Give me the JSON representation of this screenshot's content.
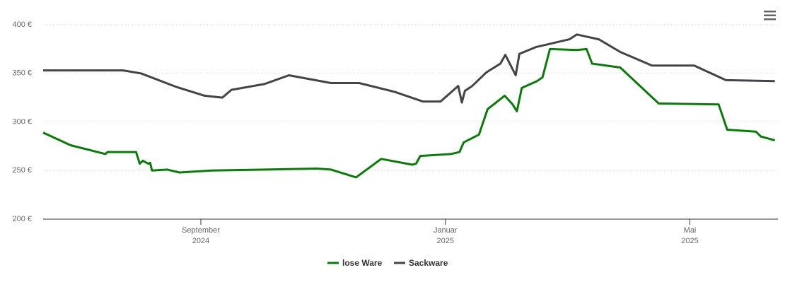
{
  "chart_data": {
    "type": "line",
    "xlim": [
      5.42,
      17.44
    ],
    "xticks": [
      {
        "value": 8,
        "label": "September",
        "year": "2024"
      },
      {
        "value": 12,
        "label": "Januar",
        "year": "2025"
      },
      {
        "value": 16,
        "label": "Mai",
        "year": "2025"
      }
    ],
    "ylim": [
      200,
      400
    ],
    "yticks": [
      {
        "value": 200,
        "label": "200 €"
      },
      {
        "value": 250,
        "label": "250 €"
      },
      {
        "value": 300,
        "label": "300 €"
      },
      {
        "value": 350,
        "label": "350 €"
      },
      {
        "value": 400,
        "label": "400 €"
      }
    ],
    "grid": true,
    "legend": "bottom",
    "series": [
      {
        "name": "lose Ware",
        "color": "#0b7a0b",
        "x": [
          5.42,
          5.87,
          6.44,
          6.47,
          6.94,
          7.0,
          7.05,
          7.14,
          7.17,
          7.2,
          7.45,
          7.65,
          8.17,
          9.9,
          10.13,
          10.54,
          10.95,
          11.46,
          11.52,
          11.59,
          12.09,
          12.23,
          12.3,
          12.55,
          12.69,
          12.97,
          13.1,
          13.17,
          13.25,
          13.5,
          13.59,
          13.71,
          14.15,
          14.31,
          14.4,
          14.86,
          15.49,
          16.47,
          16.61,
          17.08,
          17.16,
          17.39
        ],
        "values": [
          289,
          276,
          267,
          269,
          269,
          257,
          260,
          257,
          258,
          250,
          251,
          248,
          250,
          252,
          251,
          243,
          262,
          256,
          257,
          265,
          267,
          269,
          279,
          287,
          313,
          327,
          318,
          311,
          335,
          342,
          346,
          375,
          374,
          375,
          360,
          356,
          319,
          318,
          292,
          290,
          285,
          281
        ]
      },
      {
        "name": "Sackware",
        "color": "#434348",
        "x": [
          5.42,
          6.73,
          7.02,
          7.6,
          8.06,
          8.35,
          8.5,
          9.04,
          9.44,
          10.13,
          10.59,
          11.17,
          11.63,
          11.92,
          12.21,
          12.27,
          12.32,
          12.44,
          12.67,
          12.9,
          12.98,
          13.15,
          13.21,
          13.48,
          14.03,
          14.15,
          14.51,
          14.86,
          15.38,
          16.07,
          16.59,
          17.39
        ],
        "values": [
          353,
          353,
          350,
          336,
          327,
          325,
          333,
          339,
          348,
          340,
          340,
          331,
          321,
          321,
          337,
          320,
          332,
          337,
          351,
          360,
          369,
          348,
          370,
          377,
          385,
          390,
          385,
          372,
          358,
          358,
          343,
          342
        ]
      }
    ]
  }
}
